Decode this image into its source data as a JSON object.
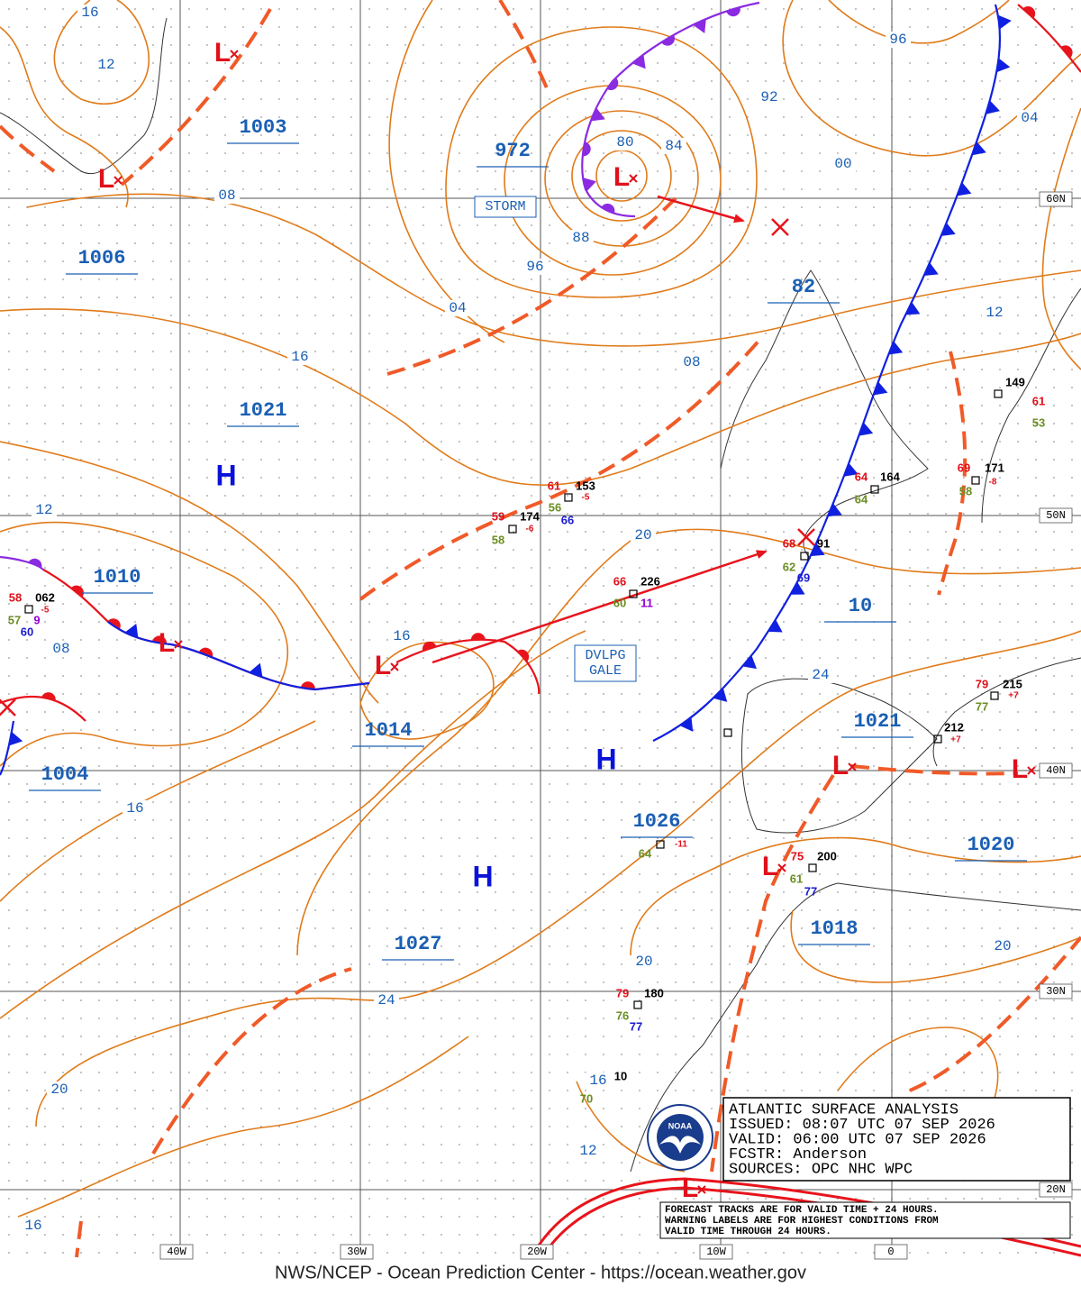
{
  "header": {
    "footer": "NWS/NCEP - Ocean Prediction Center - https://ocean.weather.gov"
  },
  "info_box": {
    "lines": [
      "ATLANTIC SURFACE ANALYSIS",
      "ISSUED:  08:07 UTC 07 SEP 2026",
      "VALID:   06:00 UTC 07 SEP 2026",
      "FCSTR:   Anderson",
      "SOURCES: OPC NHC WPC"
    ]
  },
  "forecast_note": {
    "lines": [
      "FORECAST TRACKS ARE FOR VALID TIME + 24 HOURS.",
      "WARNING LABELS ARE FOR HIGHEST CONDITIONS FROM",
      "VALID TIME THROUGH 24 HOURS."
    ]
  },
  "logo": {
    "text": "NOAA"
  },
  "grid_labels": [
    "60N",
    "50N",
    "40N",
    "30N",
    "20N",
    "40W",
    "30W",
    "20W",
    "10W",
    "0"
  ],
  "pressure_centers": [
    "1003",
    "972",
    "1006",
    "1021",
    "1010",
    "1014",
    "1004",
    "1026",
    "1027",
    "1021",
    "1018",
    "1020",
    "82",
    "10"
  ],
  "highs": [
    "H",
    "H",
    "H"
  ],
  "lows": [
    "L",
    "L",
    "L",
    "L",
    "L",
    "L",
    "L",
    "L",
    "L"
  ],
  "warning_labels": [
    [
      "STORM"
    ],
    [
      "DVLPG",
      "GALE"
    ]
  ],
  "isobar_labels": [
    "16",
    "12",
    "08",
    "80",
    "84",
    "92",
    "96",
    "04",
    "00",
    "88",
    "96",
    "04",
    "16",
    "08",
    "12",
    "12",
    "20",
    "08",
    "16",
    "24",
    "16",
    "24",
    "20",
    "20",
    "20",
    "16",
    "12",
    "16"
  ],
  "station_obs": [
    "149",
    "61",
    "53",
    "64",
    "164",
    "64",
    "69",
    "171",
    "58",
    "61",
    "153",
    "56",
    "66",
    "59",
    "174",
    "58",
    "66",
    "226",
    "60",
    "11",
    "68",
    "91",
    "62",
    "69",
    "58",
    "062",
    "57",
    "9",
    "60",
    "79",
    "215",
    "77",
    "212",
    "64",
    "75",
    "200",
    "61",
    "77",
    "79",
    "180",
    "76",
    "77",
    "10",
    "70",
    "-5",
    "-6",
    "-8",
    "-5",
    "+7",
    "+7",
    "-11"
  ]
}
